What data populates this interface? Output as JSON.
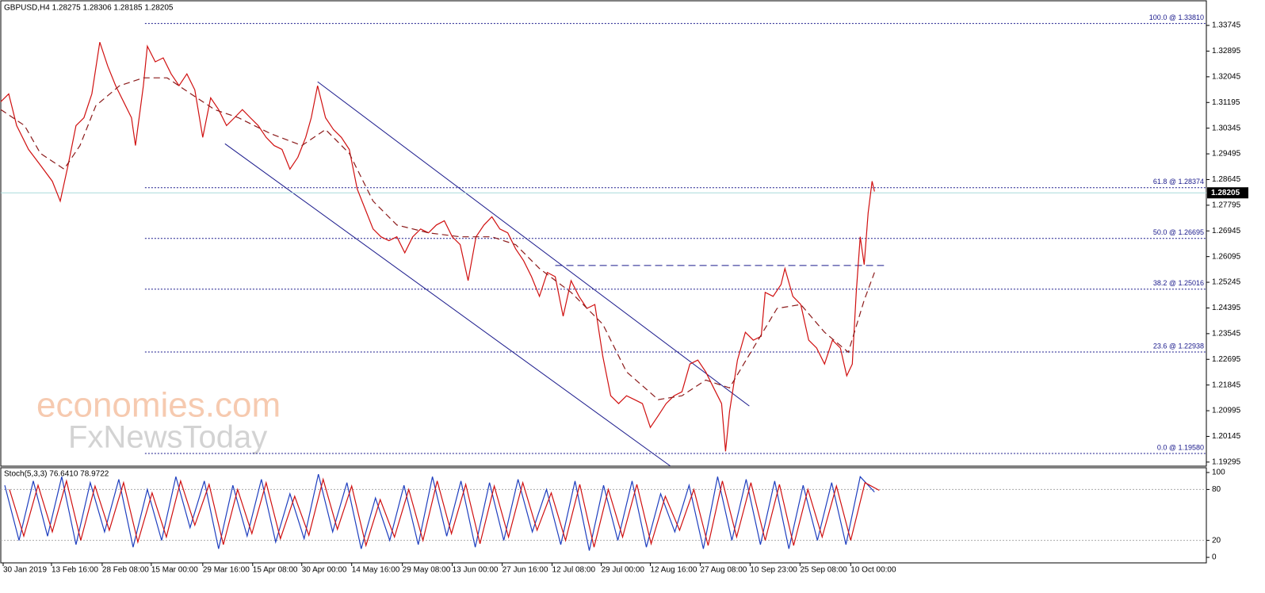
{
  "chart_data": [
    {
      "type": "line",
      "title": "GBPUSD,H4  1.28275 1.28306 1.28185 1.28205",
      "xlim": [
        0,
        1522
      ],
      "ylim": [
        1.1916,
        1.3456
      ],
      "xticks": [
        {
          "value": 3,
          "label": "30 Jan 2019"
        },
        {
          "value": 64,
          "label": "13 Feb 16:00"
        },
        {
          "value": 128,
          "label": "28 Feb 08:00"
        },
        {
          "value": 190,
          "label": "15 Mar 00:00"
        },
        {
          "value": 255,
          "label": "29 Mar 16:00"
        },
        {
          "value": 318,
          "label": "15 Apr 08:00"
        },
        {
          "value": 380,
          "label": "30 Apr 00:00"
        },
        {
          "value": 443,
          "label": "14 May 16:00"
        },
        {
          "value": 507,
          "label": "29 May 08:00"
        },
        {
          "value": 570,
          "label": "13 Jun 00:00"
        },
        {
          "value": 633,
          "label": "27 Jun 16:00"
        },
        {
          "value": 696,
          "label": "12 Jul 08:00"
        },
        {
          "value": 758,
          "label": "29 Jul 00:00"
        },
        {
          "value": 820,
          "label": "12 Aug 16:00"
        },
        {
          "value": 883,
          "label": "27 Aug 08:00"
        },
        {
          "value": 946,
          "label": "10 Sep 23:00"
        },
        {
          "value": 1009,
          "label": "25 Sep 08:00"
        },
        {
          "value": 1073,
          "label": "10 Oct 00:00"
        }
      ],
      "yticks": [
        1.33745,
        1.32895,
        1.32045,
        1.31195,
        1.30345,
        1.29495,
        1.28645,
        1.27795,
        1.26945,
        1.26095,
        1.25245,
        1.24395,
        1.23545,
        1.22695,
        1.21845,
        1.20995,
        1.20145,
        1.19295
      ],
      "series": [
        {
          "color": "#d01010",
          "style": "solid",
          "x": [
            0,
            10,
            20,
            35,
            50,
            65,
            75,
            85,
            95,
            105,
            115,
            125,
            135,
            145,
            155,
            165,
            170,
            180,
            185,
            195,
            205,
            215,
            225,
            235,
            245,
            255,
            265,
            275,
            285,
            295,
            305,
            315,
            325,
            335,
            345,
            355,
            365,
            375,
            385,
            392,
            400,
            410,
            420,
            430,
            440,
            450,
            460,
            470,
            480,
            490,
            500,
            510,
            520,
            530,
            540,
            550,
            560,
            570,
            580,
            590,
            600,
            610,
            620,
            630,
            640,
            650,
            660,
            670,
            680,
            690,
            700,
            710,
            720,
            730,
            740,
            750,
            760,
            770,
            780,
            790,
            800,
            810,
            820,
            830,
            840,
            850,
            860,
            870,
            880,
            890,
            900,
            910,
            915,
            920,
            930,
            940,
            950,
            960,
            965,
            975,
            985,
            990,
            1000,
            1010,
            1020,
            1030,
            1040,
            1050,
            1060,
            1068,
            1075,
            1080,
            1085,
            1090,
            1095,
            1100,
            1103
          ],
          "values": [
            1.3122,
            1.3148,
            1.3043,
            1.2964,
            1.2912,
            1.2859,
            1.2793,
            1.2912,
            1.3043,
            1.3069,
            1.3148,
            1.3319,
            1.324,
            1.3175,
            1.3122,
            1.3069,
            1.2977,
            1.3175,
            1.3306,
            1.3254,
            1.3267,
            1.3214,
            1.3175,
            1.3214,
            1.3161,
            1.3004,
            1.3135,
            1.3096,
            1.3043,
            1.3069,
            1.3096,
            1.3069,
            1.3043,
            1.3004,
            1.2977,
            1.2964,
            1.2899,
            1.2938,
            1.3004,
            1.3069,
            1.3175,
            1.3069,
            1.303,
            1.3004,
            1.2964,
            1.2833,
            1.2767,
            1.2701,
            1.2675,
            1.2662,
            1.2675,
            1.2622,
            1.2675,
            1.2701,
            1.2688,
            1.2714,
            1.2728,
            1.2675,
            1.2649,
            1.253,
            1.2675,
            1.2714,
            1.2741,
            1.2701,
            1.2688,
            1.2635,
            1.2596,
            1.2543,
            1.2478,
            1.2557,
            1.2543,
            1.2412,
            1.253,
            1.2478,
            1.2438,
            1.2451,
            1.228,
            1.2149,
            1.2123,
            1.2149,
            1.2136,
            1.2123,
            1.2044,
            1.2083,
            1.2123,
            1.2149,
            1.2162,
            1.2254,
            1.2267,
            1.2228,
            1.2175,
            1.2123,
            1.1965,
            1.2096,
            1.2267,
            1.2359,
            1.2333,
            1.2346,
            1.2491,
            1.2478,
            1.2517,
            1.257,
            1.2478,
            1.2451,
            1.2333,
            1.2307,
            1.2254,
            1.2333,
            1.2307,
            1.2215,
            1.2254,
            1.2491,
            1.2675,
            1.2583,
            1.2754,
            1.2859,
            1.2825
          ]
        },
        {
          "color": "#8b1a1a",
          "style": "dashed",
          "x": [
            0,
            30,
            50,
            80,
            100,
            120,
            150,
            180,
            210,
            240,
            270,
            300,
            340,
            380,
            410,
            440,
            470,
            500,
            540,
            580,
            620,
            650,
            680,
            720,
            760,
            790,
            830,
            860,
            890,
            920,
            950,
            980,
            1010,
            1040,
            1070,
            1090,
            1103
          ],
          "values": [
            1.3096,
            1.3043,
            1.2951,
            1.2899,
            1.2977,
            1.3109,
            1.3175,
            1.3201,
            1.3201,
            1.3148,
            1.3096,
            1.3069,
            1.3017,
            1.2977,
            1.303,
            1.2951,
            1.2793,
            1.2714,
            1.2688,
            1.2675,
            1.2675,
            1.2649,
            1.257,
            1.2491,
            1.2386,
            1.2228,
            1.2136,
            1.2149,
            1.2201,
            1.2175,
            1.2307,
            1.2438,
            1.2451,
            1.2359,
            1.2293,
            1.2465,
            1.2557
          ]
        }
      ],
      "trend_lines": [
        {
          "x": [
            400,
            945
          ],
          "y": [
            1.3188,
            1.2115
          ]
        },
        {
          "x": [
            283,
            845
          ],
          "y": [
            1.2983,
            1.1917
          ]
        }
      ],
      "resistance": {
        "x": [
          700,
          1115
        ],
        "y": [
          1.258,
          1.258
        ]
      },
      "last_price": 1.28205,
      "fib_start": 182,
      "fib_levels": [
        {
          "value": 1.3381,
          "label": "100.0 @ 1.33810"
        },
        {
          "value": 1.28374,
          "label": "61.8 @ 1.28374"
        },
        {
          "value": 1.26695,
          "label": "50.0 @ 1.26695"
        },
        {
          "value": 1.25016,
          "label": "38.2 @ 1.25016"
        },
        {
          "value": 1.22938,
          "label": "23.6 @ 1.22938"
        },
        {
          "value": 1.1958,
          "label": "0.0 @ 1.19580"
        }
      ],
      "watermark": [
        "economies.com",
        "FxNewsToday"
      ]
    },
    {
      "type": "line",
      "title": "Stoch(5,3,3) 76.6410 78.9722",
      "xlim": [
        0,
        1522
      ],
      "ylim": [
        -6.5,
        105.6
      ],
      "yticks": [
        0,
        20,
        80,
        100
      ],
      "levels": [
        20,
        80
      ],
      "series": [
        {
          "color": "#1f3fbf",
          "style": "solid",
          "x": [
            5,
            23,
            41,
            59,
            77,
            95,
            113,
            131,
            149,
            167,
            185,
            203,
            221,
            239,
            257,
            275,
            293,
            311,
            329,
            347,
            365,
            383,
            401,
            419,
            437,
            455,
            473,
            491,
            509,
            527,
            545,
            563,
            581,
            599,
            617,
            635,
            653,
            671,
            689,
            707,
            725,
            743,
            761,
            779,
            797,
            815,
            833,
            851,
            869,
            887,
            905,
            923,
            941,
            959,
            977,
            995,
            1013,
            1031,
            1049,
            1067,
            1085,
            1103
          ],
          "values": [
            85,
            20,
            90,
            25,
            95,
            15,
            88,
            30,
            92,
            12,
            80,
            20,
            95,
            35,
            90,
            10,
            85,
            25,
            92,
            18,
            75,
            22,
            98,
            30,
            88,
            10,
            70,
            20,
            85,
            15,
            95,
            25,
            90,
            12,
            88,
            20,
            92,
            30,
            80,
            15,
            90,
            8,
            85,
            20,
            90,
            12,
            75,
            30,
            85,
            10,
            95,
            20,
            92,
            15,
            90,
            10,
            85,
            20,
            88,
            15,
            95,
            77
          ]
        },
        {
          "color": "#d01010",
          "style": "solid",
          "x": [
            11,
            29,
            47,
            65,
            83,
            101,
            119,
            137,
            155,
            173,
            191,
            209,
            227,
            245,
            263,
            281,
            299,
            317,
            335,
            353,
            371,
            389,
            407,
            425,
            443,
            461,
            479,
            497,
            515,
            533,
            551,
            569,
            587,
            605,
            623,
            641,
            659,
            677,
            695,
            713,
            731,
            749,
            767,
            785,
            803,
            821,
            839,
            857,
            875,
            893,
            911,
            929,
            947,
            965,
            983,
            1001,
            1019,
            1037,
            1055,
            1073,
            1091,
            1109
          ],
          "values": [
            80,
            25,
            85,
            30,
            90,
            20,
            84,
            32,
            88,
            18,
            76,
            24,
            90,
            38,
            86,
            15,
            80,
            28,
            88,
            22,
            72,
            26,
            92,
            33,
            84,
            14,
            68,
            24,
            80,
            20,
            90,
            28,
            86,
            16,
            84,
            24,
            88,
            32,
            76,
            20,
            86,
            12,
            80,
            24,
            86,
            16,
            72,
            32,
            80,
            14,
            90,
            24,
            88,
            20,
            86,
            14,
            80,
            24,
            84,
            20,
            88,
            79
          ]
        }
      ]
    }
  ]
}
